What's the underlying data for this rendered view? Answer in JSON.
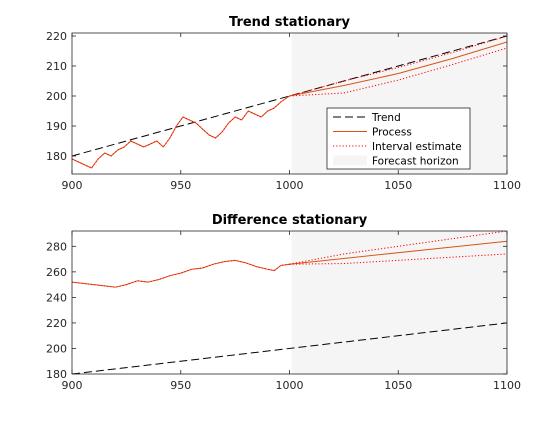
{
  "chart_data": [
    {
      "type": "line",
      "title": "Trend stationary",
      "xlim": [
        900,
        1100
      ],
      "ylim": [
        174,
        221
      ],
      "xticks": [
        900,
        950,
        1000,
        1050,
        1100
      ],
      "yticks": [
        180,
        190,
        200,
        210,
        220
      ],
      "forecast_horizon": [
        1001,
        1100
      ],
      "legend": {
        "placement": "inside-right",
        "entries": [
          "Trend",
          "Process",
          "Interval estimate",
          "Forecast horizon"
        ]
      },
      "colors": {
        "trend": "#000000",
        "process": "#d95319",
        "interval": "#ff0000",
        "horizon": "#f5f5f5"
      },
      "series": [
        {
          "name": "Trend",
          "style": "dashed",
          "x": [
            900,
            1100
          ],
          "y": [
            180,
            220
          ]
        },
        {
          "name": "Process",
          "style": "solid",
          "segment": "observed",
          "x": [
            900,
            903,
            906,
            909,
            912,
            915,
            918,
            921,
            924,
            927,
            930,
            933,
            936,
            939,
            942,
            945,
            948,
            951,
            954,
            957,
            960,
            963,
            966,
            969,
            972,
            975,
            978,
            981,
            984,
            987,
            990,
            993,
            996,
            1000
          ],
          "y": [
            179,
            178,
            177,
            176,
            179,
            181,
            180,
            182,
            183,
            185,
            184,
            183,
            184,
            185,
            183,
            186,
            190,
            193,
            192,
            191,
            189,
            187,
            186,
            188,
            191,
            193,
            192,
            195,
            194,
            193,
            195,
            196,
            198,
            200
          ]
        },
        {
          "name": "Process",
          "style": "solid",
          "segment": "forecast",
          "x": [
            1000,
            1025,
            1050,
            1075,
            1100
          ],
          "y": [
            200,
            203.5,
            207.5,
            212.5,
            218
          ]
        },
        {
          "name": "Interval estimate",
          "style": "dotted",
          "x": [
            1000,
            1025,
            1050,
            1075,
            1100
          ],
          "y": [
            200,
            205,
            209.5,
            214.5,
            220
          ]
        },
        {
          "name": "Interval estimate",
          "style": "dotted",
          "x": [
            1000,
            1025,
            1050,
            1075,
            1100
          ],
          "y": [
            200,
            201,
            205.3,
            210.5,
            216
          ]
        }
      ]
    },
    {
      "type": "line",
      "title": "Difference stationary",
      "xlim": [
        900,
        1100
      ],
      "ylim": [
        180,
        292
      ],
      "xticks": [
        900,
        950,
        1000,
        1050,
        1100
      ],
      "yticks": [
        180,
        200,
        220,
        240,
        260,
        280
      ],
      "forecast_horizon": [
        1001,
        1100
      ],
      "colors": {
        "trend": "#000000",
        "process": "#d95319",
        "interval": "#ff0000",
        "horizon": "#f5f5f5"
      },
      "series": [
        {
          "name": "Trend",
          "style": "dashed",
          "x": [
            900,
            1100
          ],
          "y": [
            180,
            220
          ]
        },
        {
          "name": "Process",
          "style": "solid",
          "segment": "observed",
          "x": [
            900,
            905,
            910,
            915,
            920,
            925,
            930,
            935,
            940,
            945,
            950,
            955,
            960,
            965,
            970,
            975,
            980,
            985,
            990,
            993,
            996,
            1000
          ],
          "y": [
            252,
            251,
            250,
            249,
            248,
            250,
            253,
            252,
            254,
            257,
            259,
            262,
            263,
            266,
            268,
            269,
            267,
            264,
            262,
            261,
            265,
            266
          ]
        },
        {
          "name": "Process",
          "style": "solid",
          "segment": "forecast",
          "x": [
            1000,
            1100
          ],
          "y": [
            266,
            284
          ]
        },
        {
          "name": "Interval estimate",
          "style": "dotted",
          "x": [
            1000,
            1025,
            1050,
            1075,
            1100
          ],
          "y": [
            266,
            274,
            280,
            286,
            292
          ]
        },
        {
          "name": "Interval estimate",
          "style": "dotted",
          "x": [
            1000,
            1025,
            1050,
            1075,
            1100
          ],
          "y": [
            266,
            266.5,
            269,
            271.5,
            274
          ]
        }
      ]
    }
  ]
}
